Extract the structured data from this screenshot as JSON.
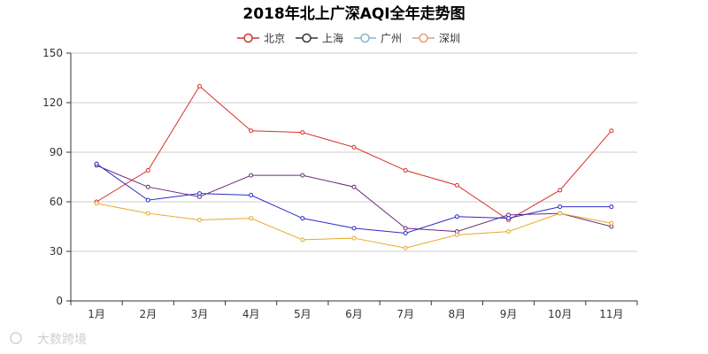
{
  "chart_data": {
    "type": "line",
    "title": "2018年北上广深AQI全年走势图",
    "categories": [
      "1月",
      "2月",
      "3月",
      "4月",
      "5月",
      "6月",
      "7月",
      "8月",
      "9月",
      "10月",
      "11月"
    ],
    "ylim": [
      0,
      150
    ],
    "yticks": [
      0,
      30,
      60,
      90,
      120,
      150
    ],
    "grid": true,
    "legend_position": "top-center",
    "series": [
      {
        "name": "北京",
        "color": "#d8302b",
        "values": [
          60,
          79,
          130,
          103,
          102,
          93,
          79,
          70,
          49,
          67,
          103
        ]
      },
      {
        "name": "上海",
        "color": "#6b2a7a",
        "values": [
          82,
          69,
          63,
          76,
          76,
          69,
          44,
          42,
          52,
          53,
          45
        ]
      },
      {
        "name": "广州",
        "color": "#2b2bc8",
        "values": [
          83,
          61,
          65,
          64,
          50,
          44,
          41,
          51,
          50,
          57,
          57
        ]
      },
      {
        "name": "深圳",
        "color": "#e6a82a",
        "values": [
          59,
          53,
          49,
          50,
          37,
          38,
          32,
          40,
          42,
          53,
          47
        ]
      }
    ],
    "legend_colors": [
      "#d8302b",
      "#333333",
      "#7fb8c9",
      "#e0a070"
    ]
  },
  "watermark": "大数跨境"
}
